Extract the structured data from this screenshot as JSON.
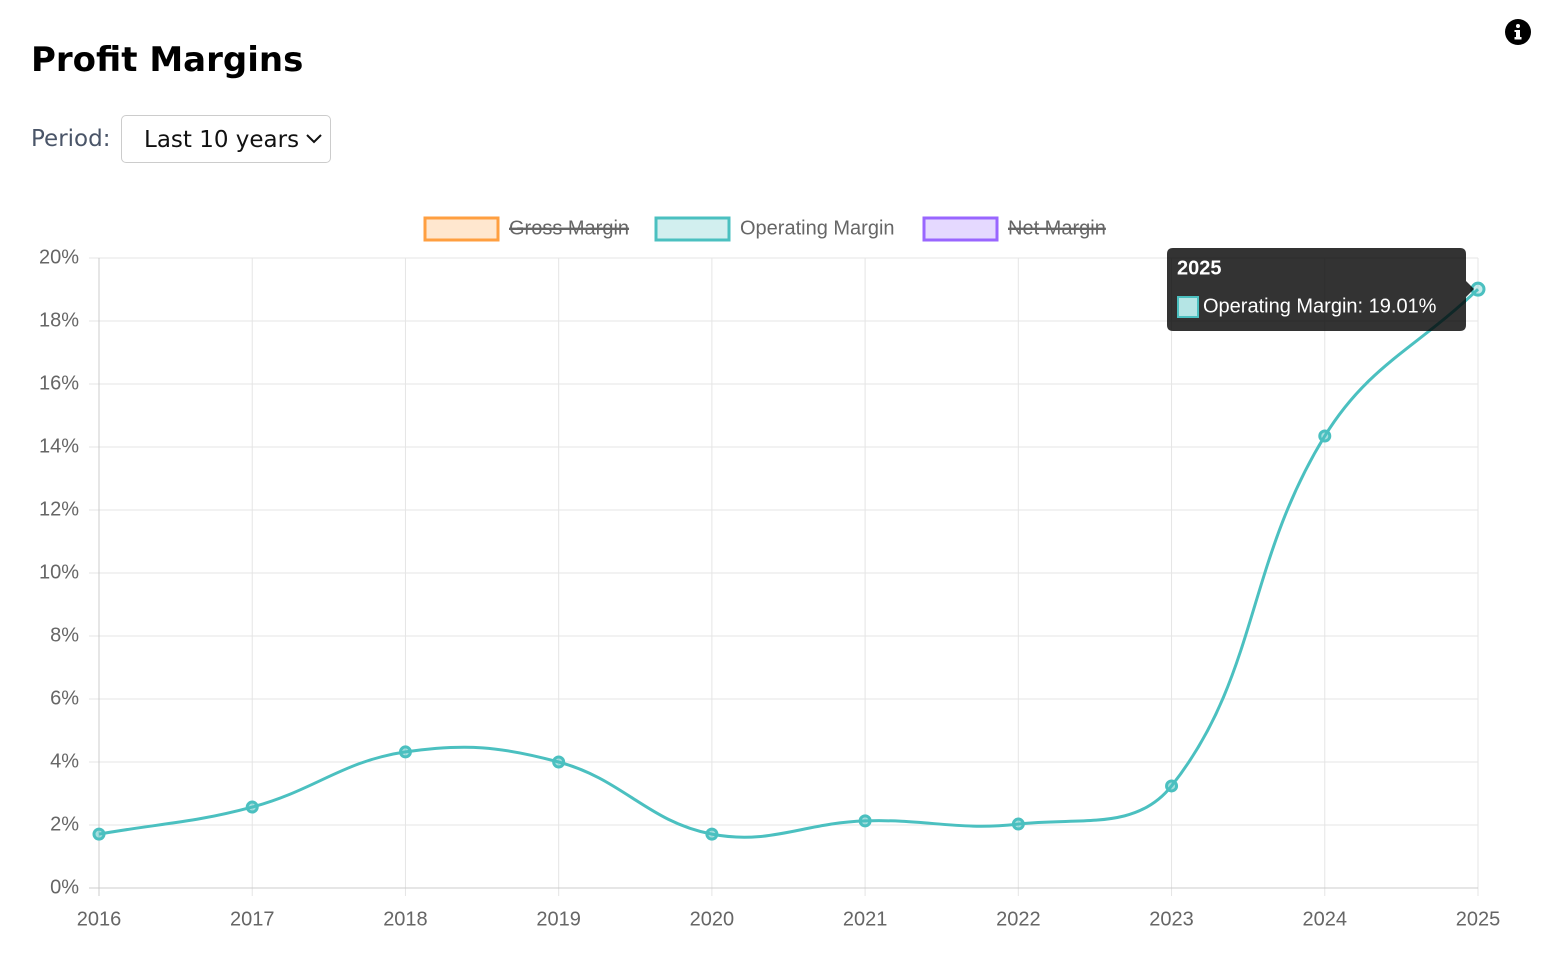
{
  "header": {
    "title": "Profit Margins",
    "period_label": "Period:",
    "period_value": "Last 10 years"
  },
  "chart_data": {
    "type": "line",
    "categories": [
      "2016",
      "2017",
      "2018",
      "2019",
      "2020",
      "2021",
      "2022",
      "2023",
      "2024",
      "2025"
    ],
    "series": [
      {
        "name": "Gross Margin",
        "color": "#ff9f40",
        "hidden": true
      },
      {
        "name": "Operating Margin",
        "color": "#4bc0c0",
        "values": [
          1.71,
          2.57,
          4.32,
          4.0,
          1.71,
          2.13,
          2.03,
          3.24,
          14.35,
          19.01
        ]
      },
      {
        "name": "Net Margin",
        "color": "#9966ff",
        "hidden": true
      }
    ],
    "ylim": [
      0,
      20
    ],
    "yticks": [
      {
        "value": 0,
        "label": "0%"
      },
      {
        "value": 2,
        "label": "2%"
      },
      {
        "value": 4,
        "label": "4%"
      },
      {
        "value": 6,
        "label": "6%"
      },
      {
        "value": 8,
        "label": "8%"
      },
      {
        "value": 10,
        "label": "10%"
      },
      {
        "value": 12,
        "label": "12%"
      },
      {
        "value": 14,
        "label": "14%"
      },
      {
        "value": 16,
        "label": "16%"
      },
      {
        "value": 18,
        "label": "18%"
      },
      {
        "value": 20,
        "label": "20%"
      }
    ],
    "grid": true,
    "legend": "top",
    "tooltip": {
      "title": "2025",
      "label": "Operating Margin: 19.01%"
    }
  }
}
